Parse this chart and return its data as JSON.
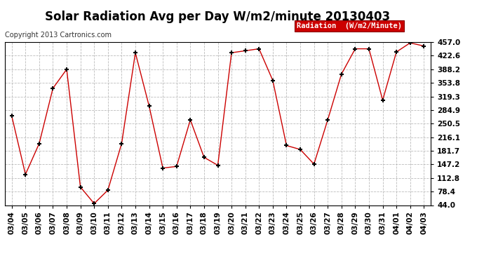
{
  "title": "Solar Radiation Avg per Day W/m2/minute 20130403",
  "copyright": "Copyright 2013 Cartronics.com",
  "legend_label": "Radiation  (W/m2/Minute)",
  "dates": [
    "03/04",
    "03/05",
    "03/06",
    "03/07",
    "03/08",
    "03/09",
    "03/10",
    "03/11",
    "03/12",
    "03/13",
    "03/14",
    "03/15",
    "03/16",
    "03/17",
    "03/18",
    "03/19",
    "03/20",
    "03/21",
    "03/22",
    "03/23",
    "03/24",
    "03/25",
    "03/26",
    "03/27",
    "03/28",
    "03/29",
    "03/30",
    "03/31",
    "04/01",
    "04/02",
    "04/03"
  ],
  "values": [
    270.0,
    122.0,
    200.0,
    340.0,
    388.0,
    90.0,
    48.0,
    82.0,
    200.0,
    430.0,
    295.0,
    138.0,
    142.0,
    260.0,
    165.0,
    145.0,
    430.0,
    435.0,
    440.0,
    360.0,
    195.0,
    185.0,
    148.0,
    260.0,
    376.0,
    440.0,
    440.0,
    310.0,
    432.0,
    455.0,
    447.0
  ],
  "line_color": "#cc0000",
  "marker_color": "#000000",
  "background_color": "#ffffff",
  "plot_bg_color": "#ffffff",
  "grid_color": "#bbbbbb",
  "ylim": [
    44.0,
    457.0
  ],
  "yticks": [
    44.0,
    78.4,
    112.8,
    147.2,
    181.7,
    216.1,
    250.5,
    284.9,
    319.3,
    353.8,
    388.2,
    422.6,
    457.0
  ],
  "title_fontsize": 12,
  "tick_fontsize": 7.5,
  "legend_bg": "#cc0000",
  "legend_text_color": "#ffffff",
  "copyright_fontsize": 7
}
